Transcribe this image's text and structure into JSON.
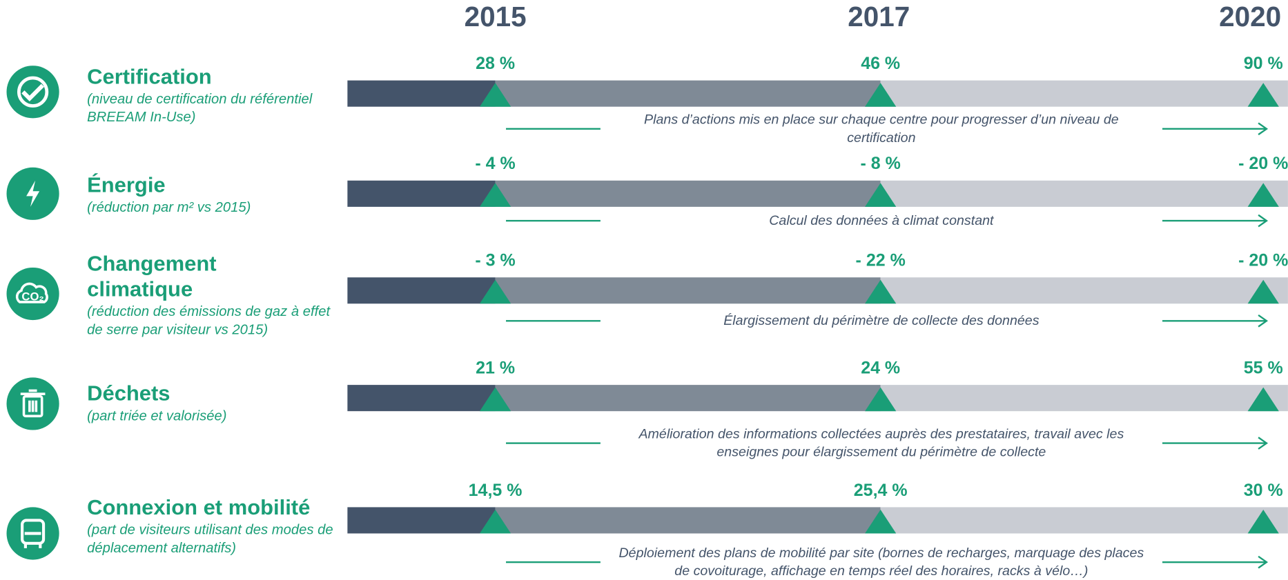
{
  "header": {
    "years": [
      "2015",
      "2017",
      "2020"
    ]
  },
  "rows": [
    {
      "title": "Certification",
      "subtitle": "(niveau de certification du référentiel BREEAM In-Use)",
      "values": [
        "28 %",
        "46 %",
        "90 %"
      ],
      "note": "Plans d’actions mis en place sur chaque centre pour progresser d’un niveau de certification"
    },
    {
      "title": "Énergie",
      "subtitle": "(réduction par m² vs 2015)",
      "values": [
        "- 4 %",
        "- 8 %",
        "- 20 %"
      ],
      "note": "Calcul des données à climat constant"
    },
    {
      "title": "Changement climatique",
      "subtitle": "(réduction des émissions de gaz à effet de serre par visiteur vs 2015)",
      "values": [
        "- 3 %",
        "- 22 %",
        "- 20 %"
      ],
      "note": "Élargissement du périmètre de collecte des données",
      "icon_label": "CO₂"
    },
    {
      "title": "Déchets",
      "subtitle": "(part triée et valorisée)",
      "values": [
        "21 %",
        "24 %",
        "55 %"
      ],
      "note": "Amélioration des informations collectées auprès des prestataires, travail avec les enseignes pour élargissement du périmètre de collecte"
    },
    {
      "title": "Connexion et mobilité",
      "subtitle": "(part de visiteurs utilisant des modes de déplacement alternatifs)",
      "values": [
        "14,5 %",
        "25,4 %",
        "30 %"
      ],
      "note": "Déploiement des plans de mobilité par site (bornes de recharges, marquage des places de covoiturage, affichage en temps réel des horaires, racks à vélo…)"
    }
  ]
}
